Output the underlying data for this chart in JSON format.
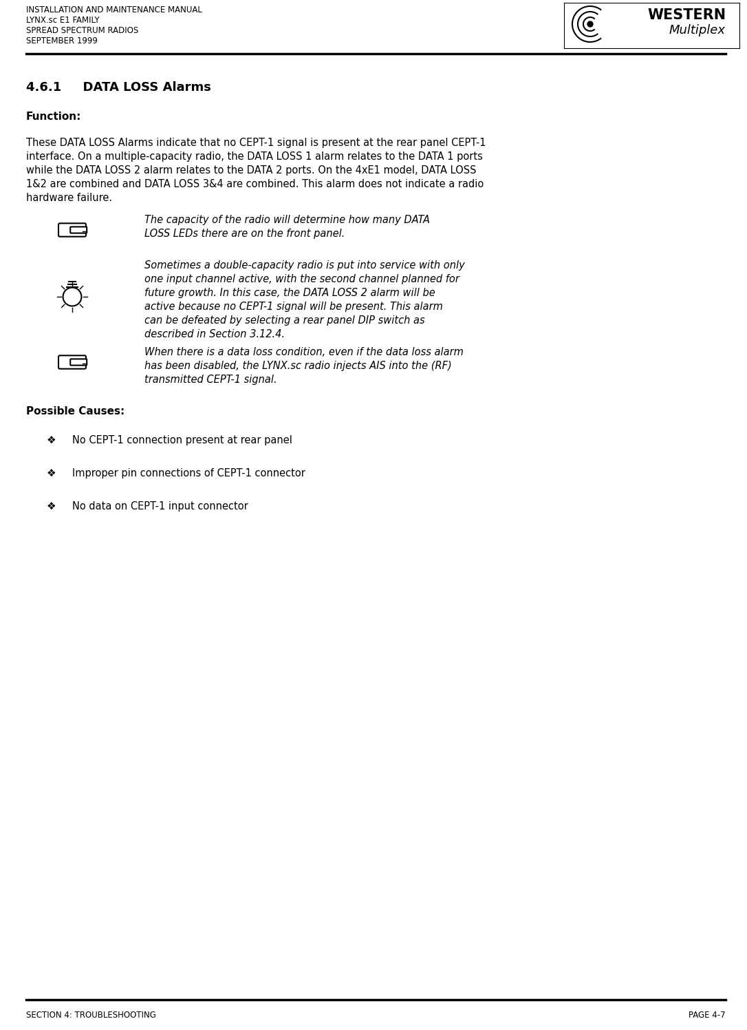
{
  "bg_color": "#ffffff",
  "header_line1": "INSTALLATION AND MAINTENANCE MANUAL",
  "header_line2": "LYNX.sc E1 FAMILY",
  "header_line3": "SPREAD SPECTRUM RADIOS",
  "header_line4": "SEPTEMBER 1999",
  "section_title": "4.6.1     DATA LOSS Alarms",
  "function_label": "Function:",
  "body_text_lines": [
    "These DATA LOSS Alarms indicate that no CEPT-1 signal is present at the rear panel CEPT-1",
    "interface. On a multiple-capacity radio, the DATA LOSS 1 alarm relates to the DATA 1 ports",
    "while the DATA LOSS 2 alarm relates to the DATA 2 ports. On the 4xE1 model, DATA LOSS",
    "1&2 are combined and DATA LOSS 3&4 are combined. This alarm does not indicate a radio",
    "hardware failure."
  ],
  "note1_lines": [
    "The capacity of the radio will determine how many DATA",
    "LOSS LEDs there are on the front panel."
  ],
  "note2_lines": [
    "Sometimes a double-capacity radio is put into service with only",
    "one input channel active, with the second channel planned for",
    "future growth. In this case, the DATA LOSS 2 alarm will be",
    "active because no CEPT-1 signal will be present. This alarm",
    "can be defeated by selecting a rear panel DIP switch as",
    "described in Section 3.12.4."
  ],
  "note3_lines": [
    "When there is a data loss condition, even if the data loss alarm",
    "has been disabled, the LYNX.sc radio injects AIS into the (RF)",
    "transmitted CEPT-1 signal."
  ],
  "possible_causes_label": "Possible Causes:",
  "bullet1": "No CEPT-1 connection present at rear panel",
  "bullet2": "Improper pin connections of CEPT-1 connector",
  "bullet3": "No data on CEPT-1 input connector",
  "footer_left": "SECTION 4: TROUBLESHOOTING",
  "footer_right": "PAGE 4-7",
  "text_color": "#000000",
  "header_font_size": 8.5,
  "body_font_size": 10.5,
  "note_font_size": 10.5,
  "title_font_size": 13,
  "bold_label_font_size": 11,
  "footer_font_size": 8.5,
  "logo_western": "WESTERN",
  "logo_multiplex": "Multiplex"
}
